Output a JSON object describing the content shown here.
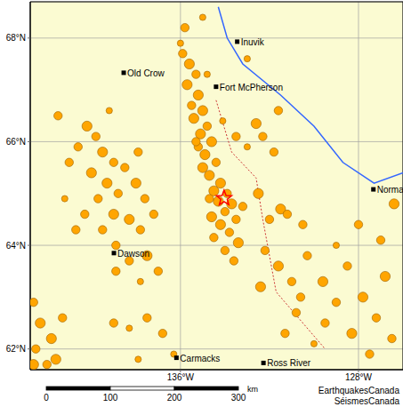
{
  "chart_data": {
    "type": "scatter",
    "color": "#ffa500",
    "marker": "circle",
    "grid": true,
    "xlim": [
      -142.75,
      -126.0
    ],
    "ylim": [
      61.6,
      68.7
    ],
    "xticks": [
      {
        "value": -136,
        "label": "136°W"
      },
      {
        "value": -128,
        "label": "128°W"
      }
    ],
    "yticks": [
      {
        "value": 62,
        "label": "62°N"
      },
      {
        "value": 64,
        "label": "64°N"
      },
      {
        "value": 66,
        "label": "66°N"
      },
      {
        "value": 68,
        "label": "68°N"
      }
    ],
    "points": [
      [
        -135.9,
        67.7,
        2
      ],
      [
        -135.6,
        67.5,
        3
      ],
      [
        -135.3,
        67.3,
        2
      ],
      [
        -135.7,
        67.1,
        3
      ],
      [
        -135.2,
        66.9,
        3
      ],
      [
        -135.5,
        66.7,
        2
      ],
      [
        -135.0,
        66.6,
        3
      ],
      [
        -135.4,
        66.45,
        3
      ],
      [
        -134.8,
        66.3,
        2
      ],
      [
        -135.1,
        66.15,
        3
      ],
      [
        -134.6,
        66.0,
        3
      ],
      [
        -135.2,
        65.9,
        2
      ],
      [
        -134.9,
        65.75,
        3
      ],
      [
        -134.4,
        65.6,
        2
      ],
      [
        -135.0,
        65.5,
        3
      ],
      [
        -134.7,
        65.35,
        3
      ],
      [
        -134.2,
        65.2,
        3
      ],
      [
        -134.5,
        65.05,
        3
      ],
      [
        -133.9,
        65.0,
        2
      ],
      [
        -134.3,
        64.85,
        3
      ],
      [
        -133.7,
        64.8,
        3
      ],
      [
        -134.0,
        64.65,
        2
      ],
      [
        -134.6,
        64.55,
        3
      ],
      [
        -133.5,
        64.5,
        2
      ],
      [
        -134.2,
        64.4,
        3
      ],
      [
        -133.8,
        64.25,
        2
      ],
      [
        -134.5,
        64.15,
        2
      ],
      [
        -133.4,
        64.05,
        3
      ],
      [
        -134.0,
        63.9,
        2
      ],
      [
        -133.6,
        63.7,
        2
      ],
      [
        -134.7,
        64.9,
        2
      ],
      [
        -133.2,
        64.75,
        2
      ],
      [
        -135.3,
        66.0,
        2
      ],
      [
        -134.1,
        66.4,
        1
      ],
      [
        -133.5,
        66.1,
        2
      ],
      [
        -133.0,
        65.9,
        1
      ],
      [
        -136.0,
        67.9,
        1
      ],
      [
        -135.8,
        68.2,
        2
      ],
      [
        -134.8,
        67.3,
        1
      ],
      [
        -132.6,
        66.35,
        3
      ],
      [
        -132.3,
        66.1,
        2
      ],
      [
        -131.8,
        65.8,
        2
      ],
      [
        -132.5,
        65.0,
        3
      ],
      [
        -131.5,
        64.7,
        3
      ],
      [
        -132.0,
        64.5,
        2
      ],
      [
        -131.2,
        64.6,
        2
      ],
      [
        -130.5,
        64.4,
        2
      ],
      [
        -132.2,
        63.9,
        2
      ],
      [
        -131.6,
        63.6,
        3
      ],
      [
        -131.0,
        63.3,
        2
      ],
      [
        -132.4,
        63.2,
        3
      ],
      [
        -130.3,
        63.8,
        2
      ],
      [
        -129.6,
        63.3,
        3
      ],
      [
        -129.0,
        62.9,
        2
      ],
      [
        -130.8,
        62.7,
        2
      ],
      [
        -128.5,
        63.6,
        2
      ],
      [
        -127.8,
        63.0,
        3
      ],
      [
        -127.2,
        62.6,
        2
      ],
      [
        -126.8,
        63.4,
        3
      ],
      [
        -126.5,
        62.2,
        2
      ],
      [
        -128.3,
        62.3,
        3
      ],
      [
        -129.5,
        62.5,
        2
      ],
      [
        -131.3,
        62.3,
        2
      ],
      [
        -130.0,
        62.1,
        1
      ],
      [
        -127.0,
        64.1,
        2
      ],
      [
        -128.0,
        64.4,
        2
      ],
      [
        -126.4,
        64.8,
        3
      ],
      [
        -127.5,
        61.9,
        2
      ],
      [
        -129.0,
        64.0,
        1
      ],
      [
        -130.6,
        63.0,
        2
      ],
      [
        -140.2,
        66.3,
        3
      ],
      [
        -139.8,
        66.1,
        2
      ],
      [
        -140.6,
        65.9,
        2
      ],
      [
        -139.5,
        65.8,
        3
      ],
      [
        -139.0,
        65.6,
        2
      ],
      [
        -138.5,
        65.5,
        2
      ],
      [
        -140.0,
        65.4,
        3
      ],
      [
        -139.3,
        65.2,
        3
      ],
      [
        -138.8,
        65.0,
        2
      ],
      [
        -138.0,
        65.2,
        3
      ],
      [
        -137.6,
        64.9,
        2
      ],
      [
        -139.7,
        64.9,
        2
      ],
      [
        -140.3,
        64.6,
        2
      ],
      [
        -139.0,
        64.6,
        3
      ],
      [
        -138.3,
        64.5,
        3
      ],
      [
        -137.8,
        64.3,
        2
      ],
      [
        -139.5,
        64.3,
        2
      ],
      [
        -138.9,
        64.0,
        2
      ],
      [
        -140.7,
        64.3,
        2
      ],
      [
        -141.2,
        64.9,
        1
      ],
      [
        -141.0,
        65.6,
        2
      ],
      [
        -137.9,
        65.8,
        2
      ],
      [
        -141.5,
        66.5,
        2
      ],
      [
        -139.2,
        66.6,
        1
      ],
      [
        -137.2,
        64.6,
        2
      ],
      [
        -138.3,
        63.7,
        2
      ],
      [
        -137.5,
        63.8,
        3
      ],
      [
        -138.9,
        63.5,
        2
      ],
      [
        -137.0,
        63.5,
        2
      ],
      [
        -137.8,
        63.3,
        1
      ],
      [
        -142.6,
        62.9,
        2
      ],
      [
        -142.3,
        62.5,
        3
      ],
      [
        -141.8,
        62.2,
        3
      ],
      [
        -142.5,
        62.0,
        2
      ],
      [
        -141.6,
        61.8,
        3
      ],
      [
        -142.0,
        61.7,
        2
      ],
      [
        -141.3,
        62.6,
        2
      ],
      [
        -142.6,
        61.7,
        3
      ],
      [
        -139.0,
        62.5,
        2
      ],
      [
        -138.3,
        62.4,
        1
      ],
      [
        -137.5,
        62.6,
        2
      ],
      [
        -136.8,
        62.3,
        2
      ],
      [
        -136.3,
        61.9,
        1
      ],
      [
        -137.9,
        61.8,
        1
      ],
      [
        -133.0,
        67.6,
        1
      ],
      [
        -135.0,
        68.4,
        1
      ],
      [
        -131.6,
        66.6,
        2
      ]
    ],
    "places": [
      {
        "name": "Inuvik",
        "x": -133.45,
        "y": 67.93
      },
      {
        "name": "Old Crow",
        "x": -138.55,
        "y": 67.33
      },
      {
        "name": "Fort McPherson",
        "x": -134.4,
        "y": 67.06
      },
      {
        "name": "Norma",
        "x": -127.33,
        "y": 65.08
      },
      {
        "name": "Dawson",
        "x": -138.99,
        "y": 63.85
      },
      {
        "name": "Carmacks",
        "x": -136.18,
        "y": 61.83
      },
      {
        "name": "Ross River",
        "x": -132.27,
        "y": 61.73
      }
    ],
    "epicenter": {
      "x": -134.04,
      "y": 64.91,
      "color": "#ff0000",
      "marker": "star"
    },
    "rivers": [
      {
        "color": "#3366ff",
        "x": [
          -126.0,
          -127.3,
          -128.7,
          -130.0,
          -131.5,
          -133.2,
          -133.9,
          -134.3
        ],
        "y": [
          65.4,
          65.2,
          65.6,
          66.3,
          66.9,
          67.5,
          68.0,
          68.6
        ]
      }
    ],
    "borders": [
      {
        "color": "#cc3333",
        "line_style": "dotted",
        "x": [
          -134.4,
          -133.7,
          -132.6,
          -132.3,
          -131.7,
          -129.5
        ],
        "y": [
          66.8,
          65.8,
          65.3,
          64.5,
          63.1,
          62.0
        ]
      }
    ],
    "scale_bar": {
      "ticks": [
        0,
        100,
        200,
        300
      ],
      "unit": "km"
    },
    "credits": [
      "EarthquakesCanada",
      "SéismesCanada"
    ]
  }
}
